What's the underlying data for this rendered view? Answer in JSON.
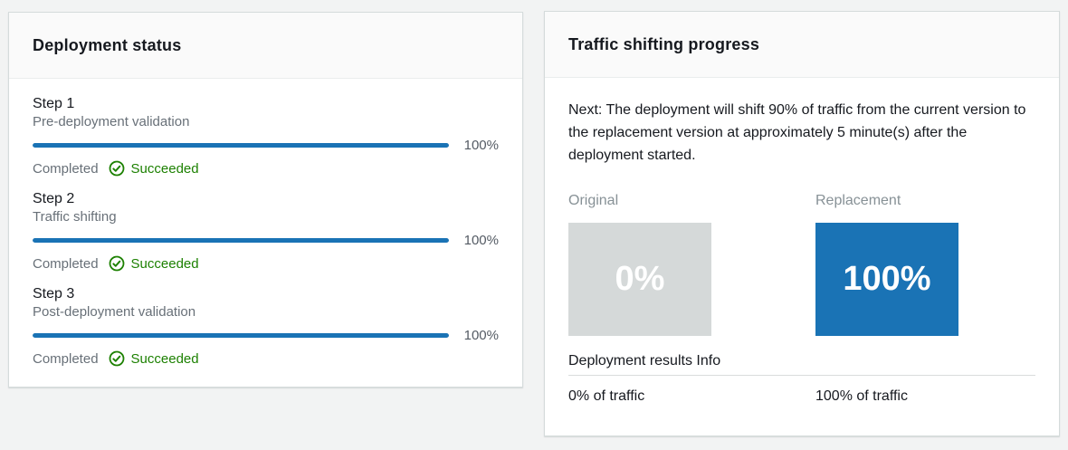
{
  "deployment_status": {
    "title": "Deployment status",
    "steps": [
      {
        "name": "Step 1",
        "description": "Pre-deployment validation",
        "progress_percent": 100,
        "progress_label": "100%",
        "completed_label": "Completed",
        "status": "Succeeded"
      },
      {
        "name": "Step 2",
        "description": "Traffic shifting",
        "progress_percent": 100,
        "progress_label": "100%",
        "completed_label": "Completed",
        "status": "Succeeded"
      },
      {
        "name": "Step 3",
        "description": "Post-deployment validation",
        "progress_percent": 100,
        "progress_label": "100%",
        "completed_label": "Completed",
        "status": "Succeeded"
      }
    ]
  },
  "traffic_shifting": {
    "title": "Traffic shifting progress",
    "next_message": "Next: The deployment will shift 90% of traffic from the current version to the replacement version at approximately 5 minute(s) after the deployment started.",
    "columns": [
      {
        "label": "Original",
        "percent": "0%",
        "traffic": "0% of traffic"
      },
      {
        "label": "Replacement",
        "percent": "100%",
        "traffic": "100% of traffic"
      }
    ],
    "results_label": "Deployment results",
    "info_link": "Info"
  },
  "colors": {
    "accent_blue": "#1a73b5",
    "success_green": "#1d8102",
    "original_box_gray": "#d5d9d9",
    "secondary_text": "#687078",
    "muted_label": "#879196",
    "background": "#f2f3f3"
  },
  "icons": {
    "success": "check-circle-icon"
  }
}
